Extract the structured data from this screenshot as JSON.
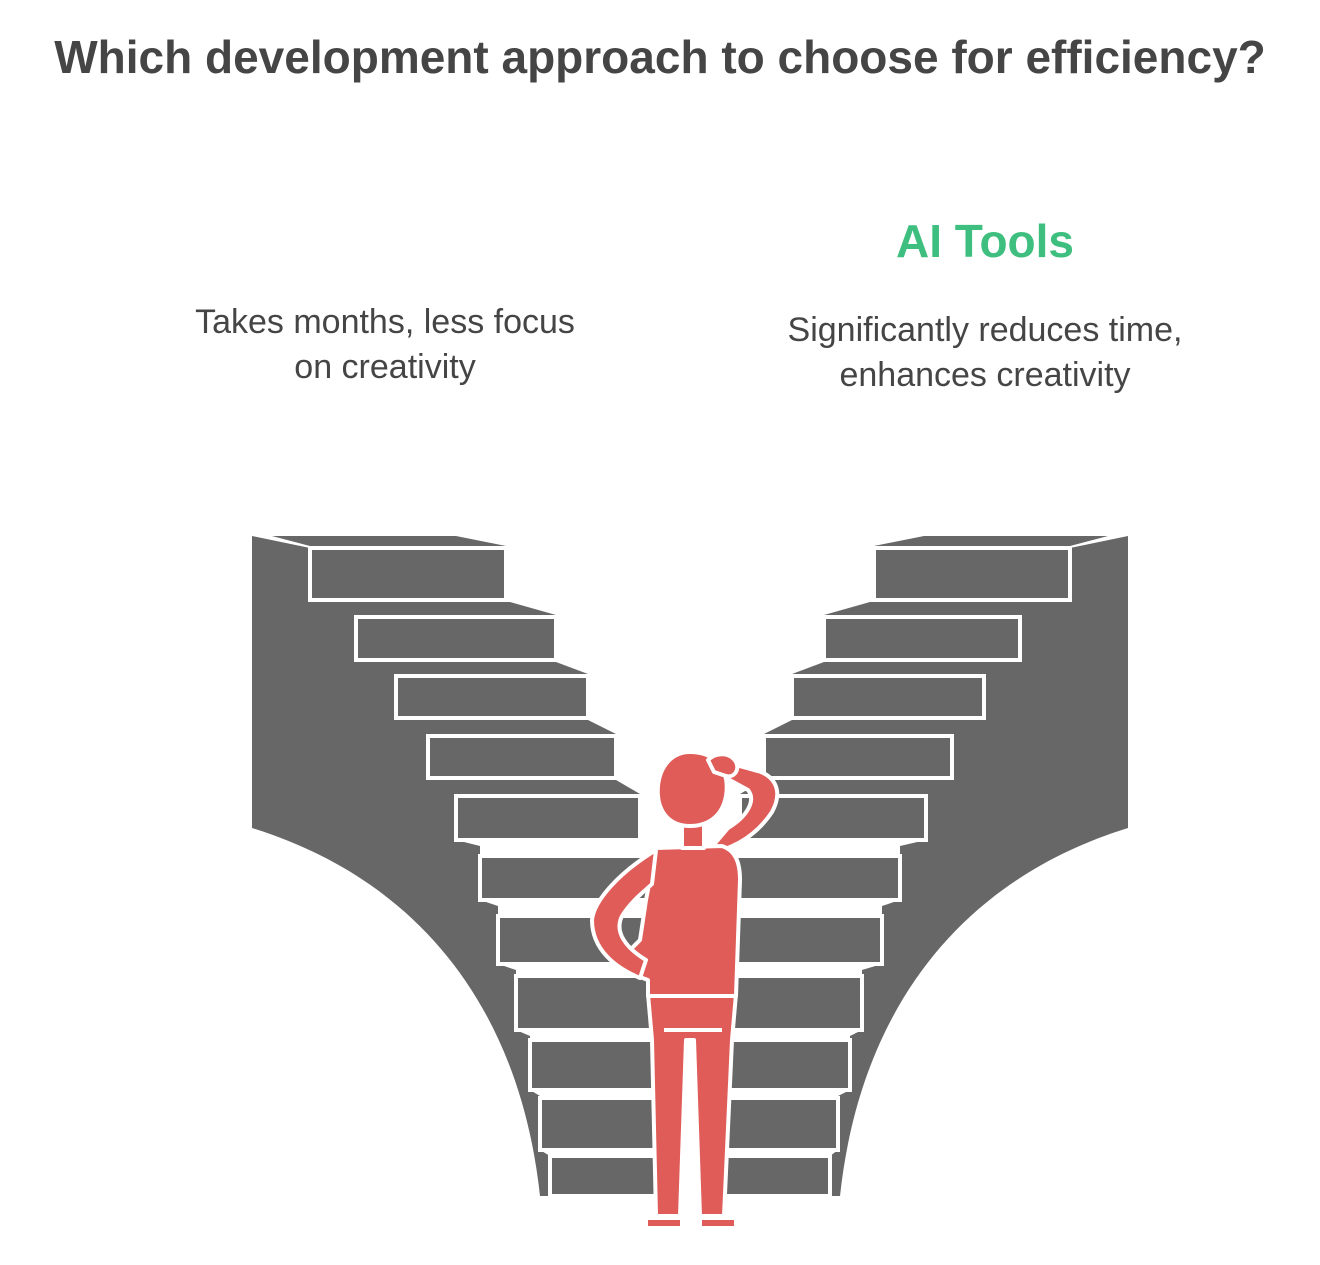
{
  "title": "Which development approach to choose for efficiency?",
  "left_option": {
    "label": "",
    "description": "Takes months, less focus on creativity"
  },
  "right_option": {
    "label": "AI Tools",
    "description": "Significantly reduces time, enhances creativity"
  },
  "colors": {
    "text": "#454545",
    "accent": "#3fbf7f",
    "stairs": "#676767",
    "person": "#e05c59"
  }
}
